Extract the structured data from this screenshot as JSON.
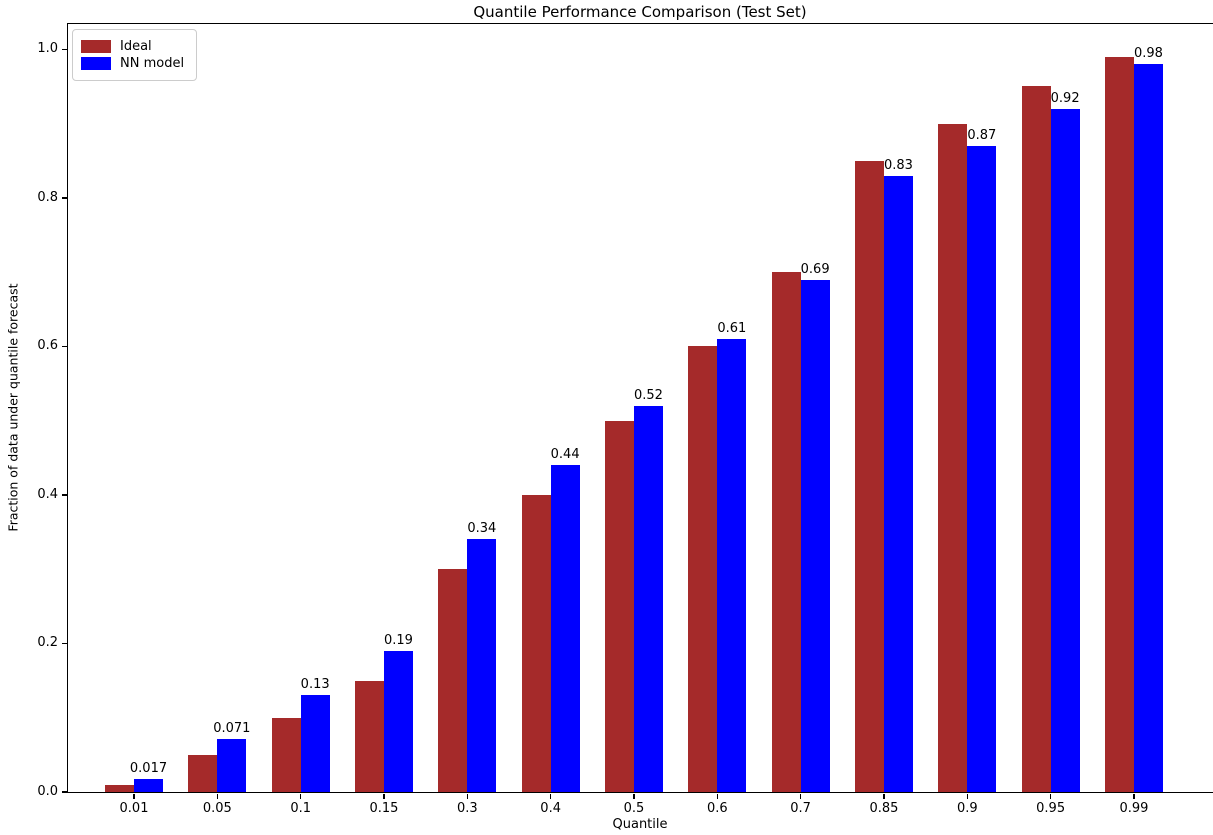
{
  "chart_data": {
    "type": "bar",
    "title": "Quantile Performance Comparison (Test Set)",
    "xlabel": "Quantile",
    "ylabel": "Fraction of data under quantile forecast",
    "categories": [
      "0.01",
      "0.05",
      "0.1",
      "0.15",
      "0.3",
      "0.4",
      "0.5",
      "0.6",
      "0.7",
      "0.85",
      "0.9",
      "0.95",
      "0.99"
    ],
    "series": [
      {
        "name": "Ideal",
        "color": "#a52a2a",
        "values": [
          0.01,
          0.05,
          0.1,
          0.15,
          0.3,
          0.4,
          0.5,
          0.6,
          0.7,
          0.85,
          0.9,
          0.95,
          0.99
        ]
      },
      {
        "name": "NN model",
        "color": "#0000ff",
        "values": [
          0.017,
          0.071,
          0.13,
          0.19,
          0.34,
          0.44,
          0.52,
          0.61,
          0.69,
          0.83,
          0.87,
          0.92,
          0.98
        ]
      }
    ],
    "bar_value_labels": [
      "0.017",
      "0.071",
      "0.13",
      "0.19",
      "0.34",
      "0.44",
      "0.52",
      "0.61",
      "0.69",
      "0.83",
      "0.87",
      "0.92",
      "0.98"
    ],
    "yticks": [
      {
        "value": 0.0,
        "label": "0.0"
      },
      {
        "value": 0.2,
        "label": "0.2"
      },
      {
        "value": 0.4,
        "label": "0.4"
      },
      {
        "value": 0.6,
        "label": "0.6"
      },
      {
        "value": 0.8,
        "label": "0.8"
      },
      {
        "value": 1.0,
        "label": "1.0"
      }
    ],
    "ylim": [
      0,
      1.034
    ],
    "grid": false,
    "legend_position": "upper left",
    "background_color": "#ffffff",
    "axis_color": "#000000"
  }
}
